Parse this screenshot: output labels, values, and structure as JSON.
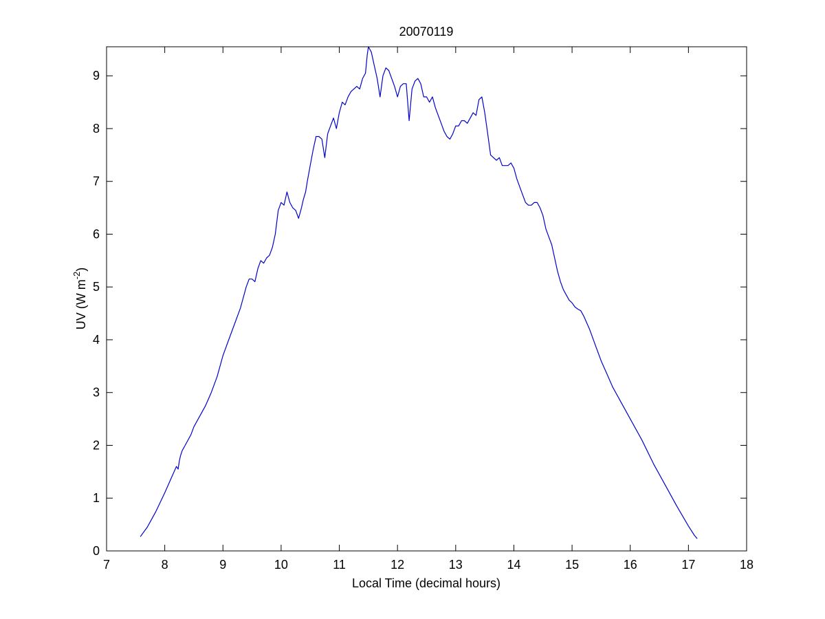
{
  "chart_data": {
    "type": "line",
    "title": "20070119",
    "xlabel": "Local Time (decimal hours)",
    "ylabel_main": "UV (W m",
    "ylabel_sup": "-2",
    "ylabel_close": ")",
    "xlim": [
      7,
      18
    ],
    "ylim": [
      0,
      9.55
    ],
    "xticks": [
      7,
      8,
      9,
      10,
      11,
      12,
      13,
      14,
      15,
      16,
      17,
      18
    ],
    "yticks": [
      0,
      1,
      2,
      3,
      4,
      5,
      6,
      7,
      8,
      9
    ],
    "grid": false,
    "line_color": "#0000cc",
    "series": [
      {
        "x": [
          7.58,
          7.7,
          7.85,
          8.0,
          8.1,
          8.2,
          8.23,
          8.25,
          8.27,
          8.3,
          8.35,
          8.45,
          8.5,
          8.6,
          8.7,
          8.8,
          8.9,
          9.0,
          9.1,
          9.2,
          9.3,
          9.35,
          9.4,
          9.45,
          9.5,
          9.55,
          9.6,
          9.65,
          9.7,
          9.75,
          9.8,
          9.85,
          9.9,
          9.95,
          10.0,
          10.05,
          10.1,
          10.15,
          10.2,
          10.25,
          10.3,
          10.35,
          10.38,
          10.42,
          10.45,
          10.5,
          10.55,
          10.6,
          10.65,
          10.7,
          10.75,
          10.8,
          10.85,
          10.9,
          10.95,
          11.0,
          11.05,
          11.1,
          11.15,
          11.2,
          11.25,
          11.3,
          11.35,
          11.4,
          11.45,
          11.48,
          11.5,
          11.55,
          11.6,
          11.65,
          11.7,
          11.75,
          11.8,
          11.85,
          11.9,
          11.95,
          12.0,
          12.05,
          12.1,
          12.15,
          12.2,
          12.25,
          12.3,
          12.35,
          12.4,
          12.45,
          12.5,
          12.55,
          12.6,
          12.65,
          12.7,
          12.75,
          12.8,
          12.85,
          12.9,
          12.95,
          13.0,
          13.05,
          13.1,
          13.15,
          13.2,
          13.25,
          13.3,
          13.35,
          13.4,
          13.45,
          13.5,
          13.55,
          13.6,
          13.65,
          13.7,
          13.75,
          13.8,
          13.85,
          13.9,
          13.95,
          14.0,
          14.05,
          14.1,
          14.15,
          14.2,
          14.25,
          14.3,
          14.35,
          14.4,
          14.45,
          14.5,
          14.55,
          14.6,
          14.65,
          14.7,
          14.75,
          14.8,
          14.85,
          14.9,
          14.95,
          15.0,
          15.05,
          15.1,
          15.15,
          15.2,
          15.3,
          15.4,
          15.5,
          15.6,
          15.7,
          15.8,
          15.9,
          16.0,
          16.2,
          16.4,
          16.6,
          16.8,
          17.0,
          17.1,
          17.15
        ],
        "y": [
          0.27,
          0.45,
          0.75,
          1.1,
          1.35,
          1.6,
          1.55,
          1.7,
          1.8,
          1.9,
          2.0,
          2.2,
          2.35,
          2.55,
          2.75,
          3.0,
          3.3,
          3.7,
          4.0,
          4.3,
          4.6,
          4.8,
          5.0,
          5.15,
          5.15,
          5.1,
          5.35,
          5.5,
          5.45,
          5.55,
          5.6,
          5.75,
          6.0,
          6.45,
          6.6,
          6.55,
          6.8,
          6.6,
          6.5,
          6.45,
          6.3,
          6.5,
          6.65,
          6.8,
          7.0,
          7.3,
          7.6,
          7.85,
          7.85,
          7.8,
          7.45,
          7.9,
          8.05,
          8.2,
          8.0,
          8.3,
          8.5,
          8.45,
          8.6,
          8.7,
          8.75,
          8.8,
          8.75,
          8.95,
          9.05,
          9.4,
          9.55,
          9.45,
          9.2,
          8.95,
          8.6,
          9.0,
          9.15,
          9.1,
          8.95,
          8.8,
          8.6,
          8.8,
          8.85,
          8.85,
          8.15,
          8.75,
          8.9,
          8.95,
          8.85,
          8.6,
          8.6,
          8.5,
          8.6,
          8.4,
          8.25,
          8.1,
          7.95,
          7.85,
          7.8,
          7.9,
          8.05,
          8.05,
          8.15,
          8.15,
          8.1,
          8.2,
          8.3,
          8.25,
          8.55,
          8.6,
          8.3,
          7.9,
          7.5,
          7.45,
          7.4,
          7.45,
          7.3,
          7.3,
          7.3,
          7.35,
          7.25,
          7.05,
          6.9,
          6.75,
          6.6,
          6.55,
          6.55,
          6.6,
          6.6,
          6.5,
          6.35,
          6.1,
          5.95,
          5.8,
          5.55,
          5.3,
          5.1,
          4.95,
          4.85,
          4.75,
          4.7,
          4.62,
          4.58,
          4.55,
          4.45,
          4.2,
          3.9,
          3.6,
          3.35,
          3.1,
          2.9,
          2.7,
          2.5,
          2.1,
          1.65,
          1.25,
          0.85,
          0.47,
          0.3,
          0.23
        ]
      }
    ]
  }
}
